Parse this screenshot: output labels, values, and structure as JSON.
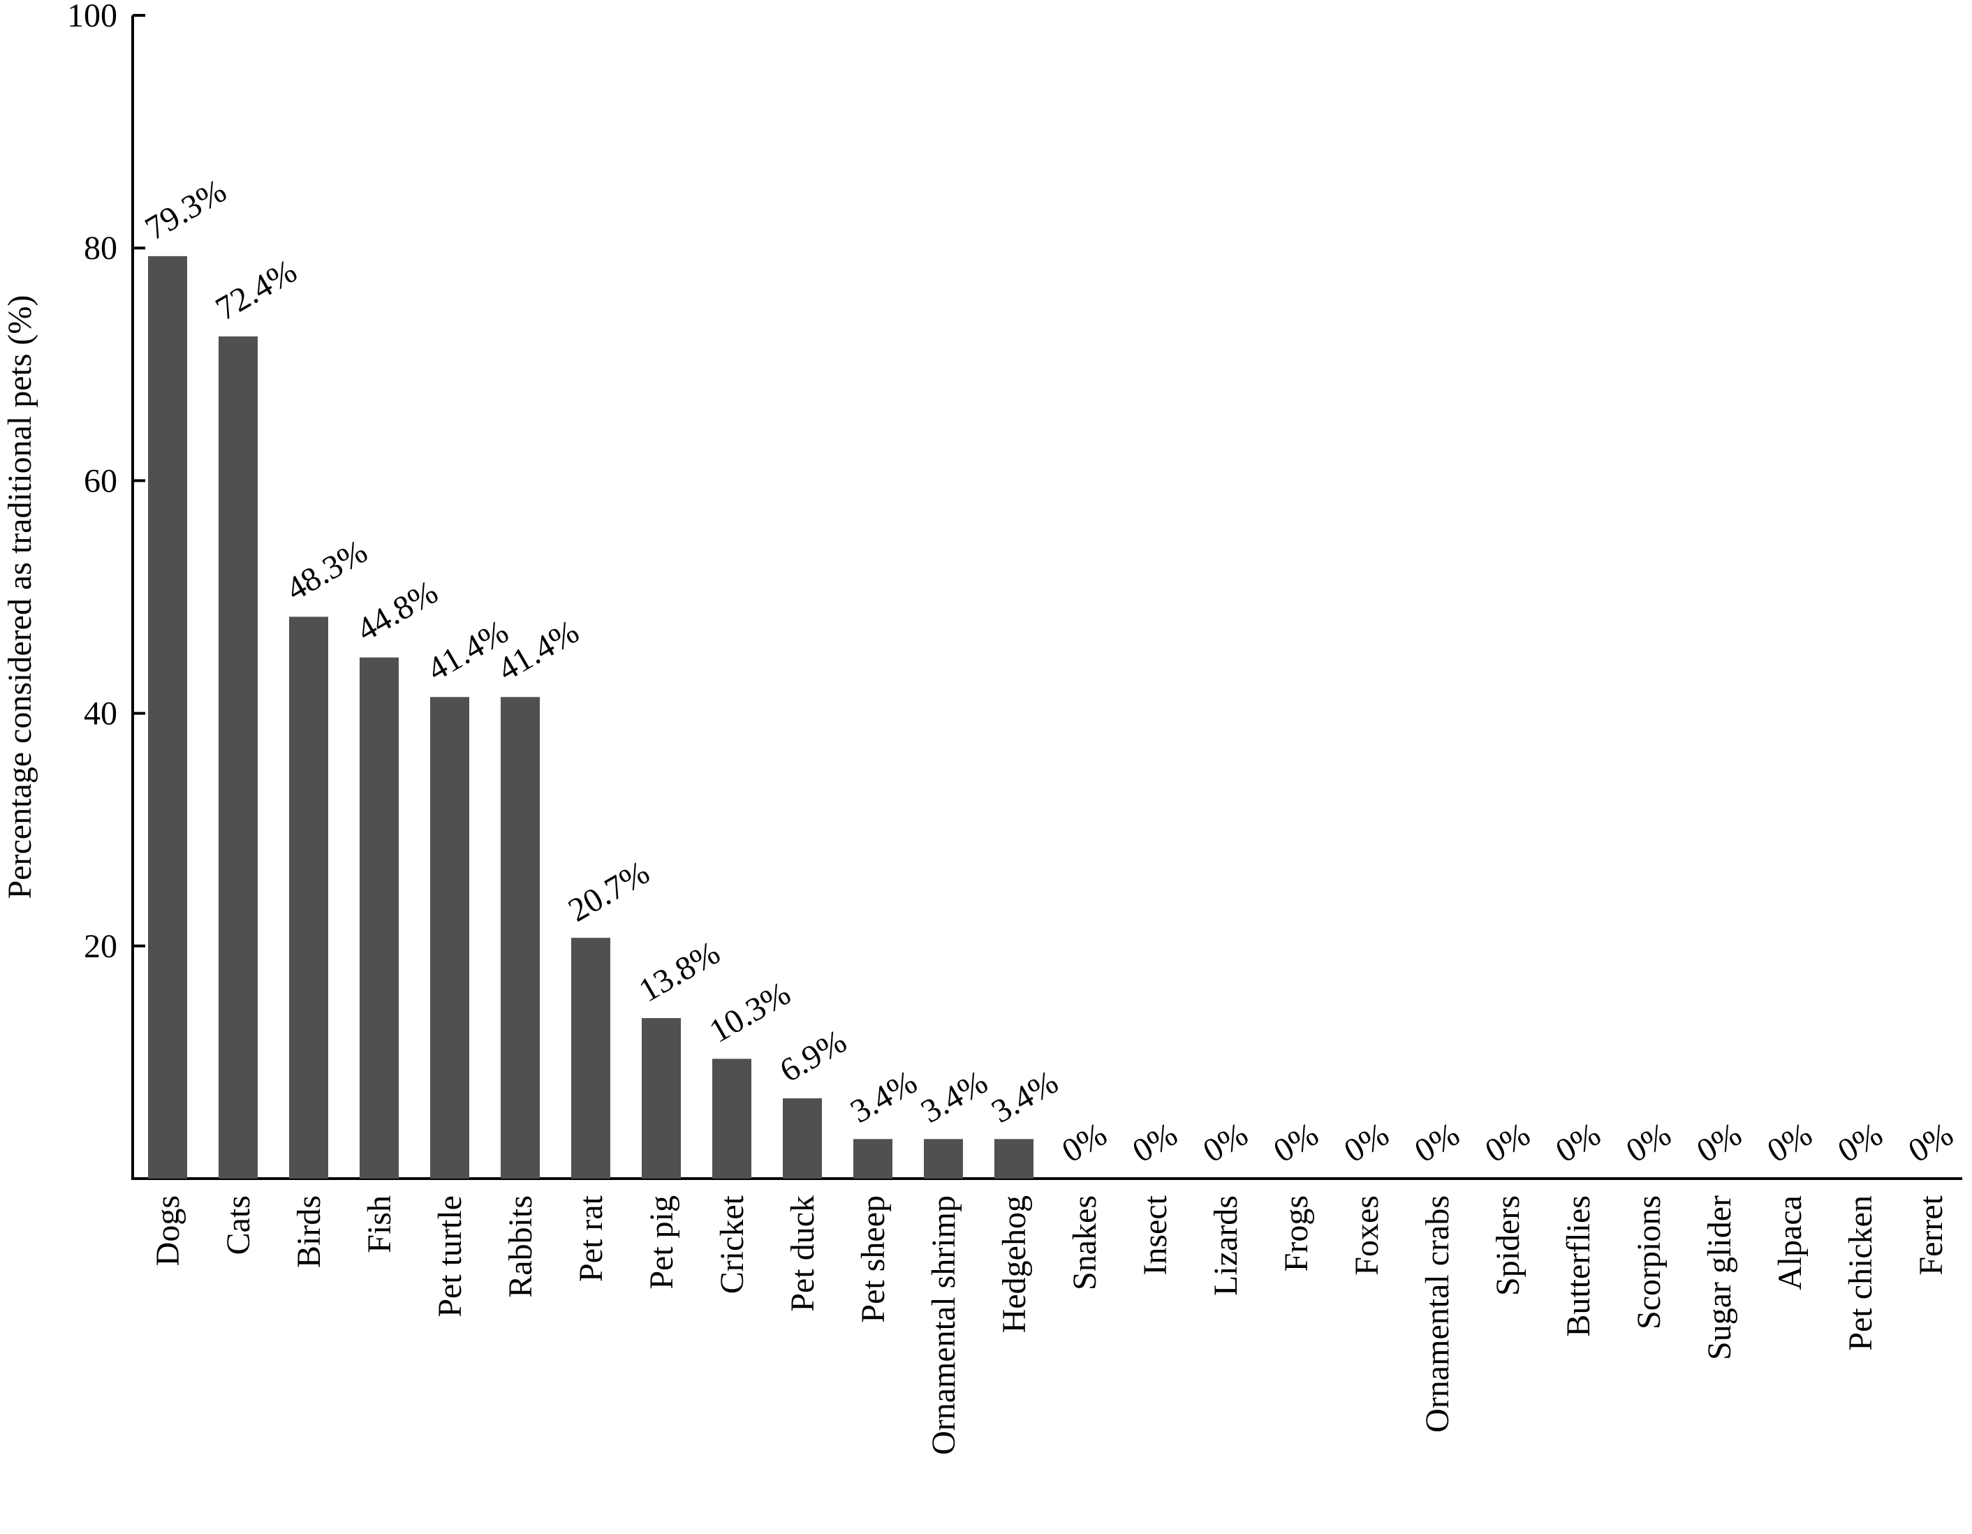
{
  "chart_data": {
    "type": "bar",
    "title": "",
    "xlabel": "",
    "ylabel": "Percentage considered as traditional pets (%)",
    "ylim": [
      0,
      100
    ],
    "yticks": [
      20,
      40,
      60,
      80,
      100
    ],
    "grid": false,
    "legend": "none",
    "bar_color": "#505050",
    "categories": [
      "Dogs",
      "Cats",
      "Birds",
      "Fish",
      "Pet turtle",
      "Rabbits",
      "Pet rat",
      "Pet pig",
      "Cricket",
      "Pet duck",
      "Pet sheep",
      "Ornamental shrimp",
      "Hedgehog",
      "Snakes",
      "Insect",
      "Lizards",
      "Frogs",
      "Foxes",
      "Ornamental crabs",
      "Spiders",
      "Butterflies",
      "Scorpions",
      "Sugar glider",
      "Alpaca",
      "Pet chicken",
      "Ferret"
    ],
    "values": [
      79.3,
      72.4,
      48.3,
      44.8,
      41.4,
      41.4,
      20.7,
      13.8,
      10.3,
      6.9,
      3.4,
      3.4,
      3.4,
      0,
      0,
      0,
      0,
      0,
      0,
      0,
      0,
      0,
      0,
      0,
      0,
      0
    ],
    "data_labels": [
      "79.3%",
      "72.4%",
      "48.3%",
      "44.8%",
      "41.4%",
      "41.4%",
      "20.7%",
      "13.8%",
      "10.3%",
      "6.9%",
      "3.4%",
      "3.4%",
      "3.4%",
      "0%",
      "0%",
      "0%",
      "0%",
      "0%",
      "0%",
      "0%",
      "0%",
      "0%",
      "0%",
      "0%",
      "0%",
      "0%"
    ]
  }
}
